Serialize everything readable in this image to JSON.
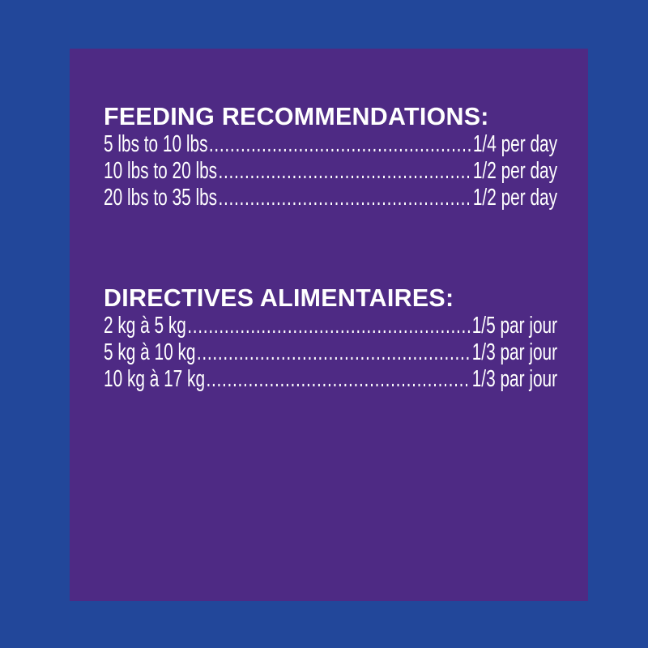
{
  "colors": {
    "background": "#22479a",
    "panel": "#4e2a84",
    "text": "#ffffff"
  },
  "english": {
    "title": "FEEDING RECOMMENDATIONS:",
    "rows": [
      {
        "weight": "5 lbs to 10 lbs",
        "amount": "1/4 per day"
      },
      {
        "weight": "10 lbs to 20 lbs",
        "amount": "1/2 per day"
      },
      {
        "weight": "20 lbs to 35 lbs",
        "amount": "1/2 per day"
      }
    ]
  },
  "french": {
    "title": "DIRECTIVES ALIMENTAIRES:",
    "rows": [
      {
        "weight": "2 kg à 5 kg",
        "amount": "1/5 par jour"
      },
      {
        "weight": "5 kg à 10 kg",
        "amount": "1/3 par jour"
      },
      {
        "weight": "10 kg à 17 kg",
        "amount": "1/3 par jour"
      }
    ]
  }
}
